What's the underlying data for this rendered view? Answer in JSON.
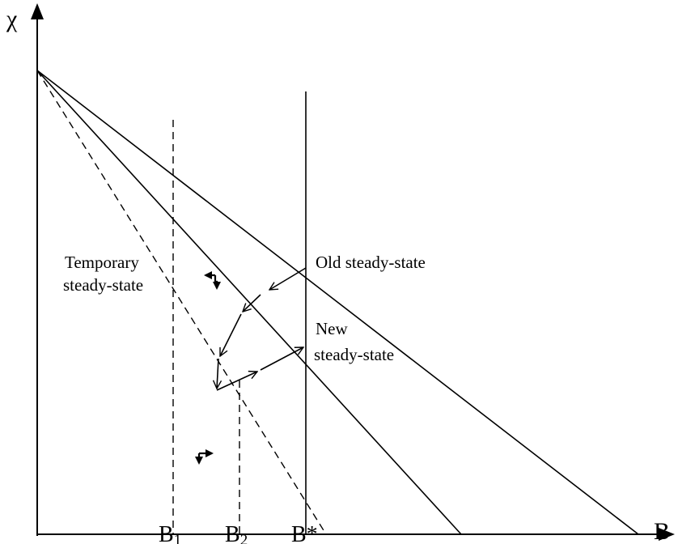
{
  "axes": {
    "y_label": "χ",
    "x_label": "B"
  },
  "ticks": {
    "b1": {
      "base": "B",
      "sub": "1"
    },
    "b2": {
      "base": "B",
      "sub": "2"
    },
    "bstar": "B*"
  },
  "annotations": {
    "temporary_line1": "Temporary",
    "temporary_line2": "steady-state",
    "old_steady_state": "Old steady-state",
    "new_line1": "New",
    "new_line2": "steady-state"
  }
}
